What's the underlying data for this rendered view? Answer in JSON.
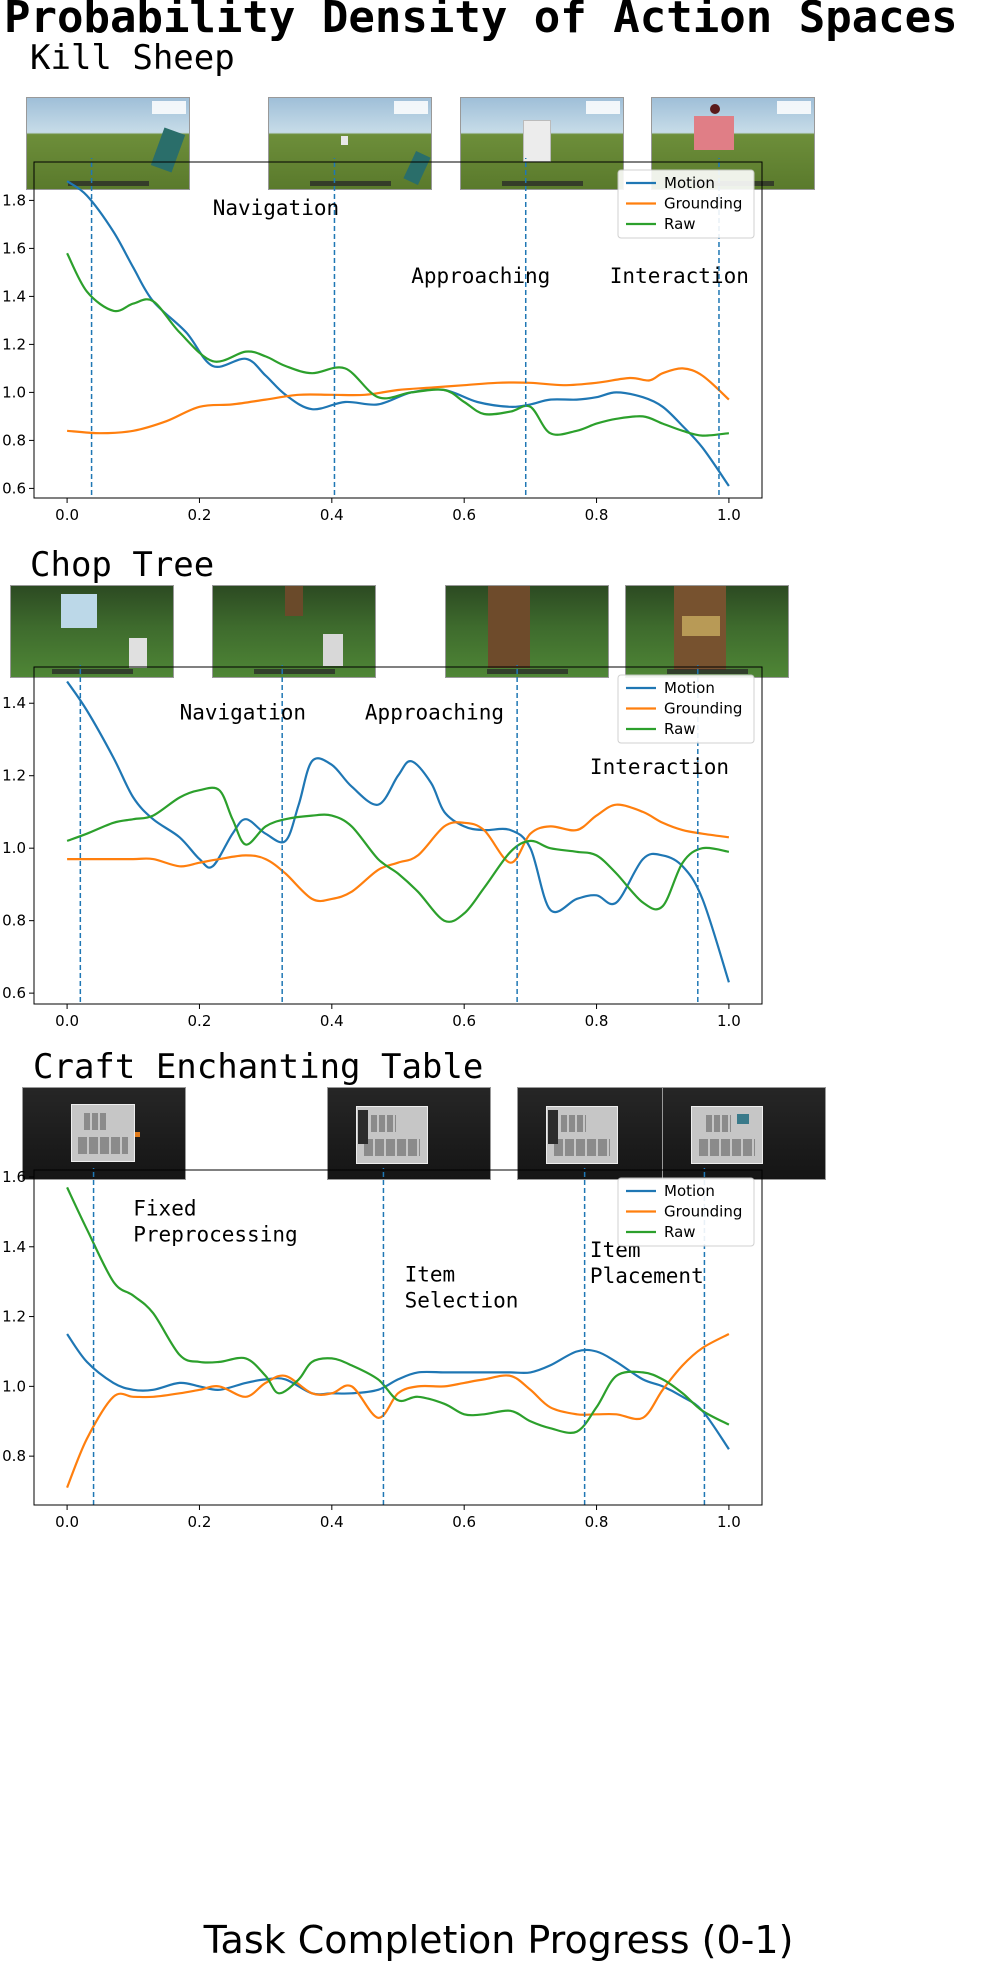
{
  "title": "Probability Density of Action Spaces",
  "x_axis_label": "Task Completion Progress (0-1)",
  "colors": {
    "Motion": "#1f77b4",
    "Grounding": "#ff7f0e",
    "Raw": "#2ca02c",
    "phase_line": "#1f77b4"
  },
  "panels": [
    {
      "name": "Kill Sheep",
      "thumb_scenes": [
        "grass-field",
        "grass-sheep-distant",
        "grass-sheep-near",
        "grass-sheep-hit"
      ]
    },
    {
      "name": "Chop Tree",
      "thumb_scenes": [
        "forest-leaves",
        "forest-trunk-distant",
        "forest-trunk-near",
        "forest-trunk-chopped"
      ]
    },
    {
      "name": "Craft Enchanting Table",
      "thumb_scenes": [
        "crafting-gui",
        "inventory-gui",
        "inventory-gui-select",
        "inventory-gui-place"
      ]
    }
  ],
  "chart_data": [
    {
      "type": "line",
      "title": "Kill Sheep",
      "xlabel": "Task Completion Progress (0-1)",
      "ylabel": "",
      "xlim": [
        -0.05,
        1.05
      ],
      "ylim": [
        0.56,
        1.96
      ],
      "xticks": [
        0.0,
        0.2,
        0.4,
        0.6,
        0.8,
        1.0
      ],
      "xtick_labels": [
        "0.0",
        "0.2",
        "0.4",
        "0.6",
        "0.8",
        "1.0"
      ],
      "yticks": [
        0.6,
        0.8,
        1.0,
        1.2,
        1.4,
        1.6,
        1.8
      ],
      "ytick_labels": [
        "0.6",
        "0.8",
        "1.0",
        "1.2",
        "1.4",
        "1.6",
        "1.8"
      ],
      "legend": [
        "Motion",
        "Grounding",
        "Raw"
      ],
      "legend_position": "top-right",
      "phase_lines": [
        0.037,
        0.404,
        0.693,
        0.985
      ],
      "phase_labels": [
        {
          "lines": [
            "Navigation"
          ],
          "x": 0.22,
          "y": 1.74
        },
        {
          "lines": [
            "Approaching"
          ],
          "x": 0.52,
          "y": 1.455
        },
        {
          "lines": [
            "Interaction"
          ],
          "x": 0.82,
          "y": 1.455
        }
      ],
      "series": [
        {
          "name": "Motion",
          "x": [
            0,
            0.03,
            0.07,
            0.1,
            0.13,
            0.18,
            0.22,
            0.27,
            0.3,
            0.33,
            0.37,
            0.42,
            0.47,
            0.52,
            0.57,
            0.62,
            0.67,
            0.7,
            0.73,
            0.77,
            0.8,
            0.83,
            0.87,
            0.9,
            0.93,
            0.96,
            1.0
          ],
          "y": [
            1.88,
            1.82,
            1.67,
            1.52,
            1.38,
            1.25,
            1.11,
            1.14,
            1.07,
            0.99,
            0.93,
            0.96,
            0.95,
            1.0,
            1.01,
            0.96,
            0.94,
            0.95,
            0.97,
            0.97,
            0.98,
            1.0,
            0.98,
            0.94,
            0.86,
            0.77,
            0.61
          ]
        },
        {
          "name": "Grounding",
          "x": [
            0,
            0.05,
            0.1,
            0.15,
            0.2,
            0.25,
            0.3,
            0.35,
            0.4,
            0.45,
            0.5,
            0.55,
            0.6,
            0.65,
            0.7,
            0.75,
            0.8,
            0.85,
            0.88,
            0.9,
            0.93,
            0.96,
            1.0
          ],
          "y": [
            0.84,
            0.83,
            0.84,
            0.88,
            0.94,
            0.95,
            0.97,
            0.99,
            0.99,
            0.99,
            1.01,
            1.02,
            1.03,
            1.04,
            1.04,
            1.03,
            1.04,
            1.06,
            1.05,
            1.08,
            1.1,
            1.07,
            0.97
          ]
        },
        {
          "name": "Raw",
          "x": [
            0,
            0.03,
            0.07,
            0.1,
            0.13,
            0.17,
            0.22,
            0.27,
            0.3,
            0.33,
            0.37,
            0.42,
            0.47,
            0.52,
            0.57,
            0.6,
            0.63,
            0.67,
            0.7,
            0.73,
            0.77,
            0.8,
            0.83,
            0.87,
            0.9,
            0.93,
            0.96,
            1.0
          ],
          "y": [
            1.58,
            1.42,
            1.34,
            1.37,
            1.38,
            1.25,
            1.13,
            1.17,
            1.15,
            1.11,
            1.08,
            1.1,
            0.98,
            1.0,
            1.01,
            0.96,
            0.91,
            0.92,
            0.94,
            0.83,
            0.84,
            0.87,
            0.89,
            0.9,
            0.87,
            0.84,
            0.82,
            0.83
          ]
        }
      ]
    },
    {
      "type": "line",
      "title": "Chop Tree",
      "xlabel": "Task Completion Progress (0-1)",
      "ylabel": "",
      "xlim": [
        -0.05,
        1.05
      ],
      "ylim": [
        0.57,
        1.5
      ],
      "xticks": [
        0.0,
        0.2,
        0.4,
        0.6,
        0.8,
        1.0
      ],
      "xtick_labels": [
        "0.0",
        "0.2",
        "0.4",
        "0.6",
        "0.8",
        "1.0"
      ],
      "yticks": [
        0.6,
        0.8,
        1.0,
        1.2,
        1.4
      ],
      "ytick_labels": [
        "0.6",
        "0.8",
        "1.0",
        "1.2",
        "1.4"
      ],
      "legend": [
        "Motion",
        "Grounding",
        "Raw"
      ],
      "legend_position": "top-right",
      "phase_lines": [
        0.02,
        0.325,
        0.68,
        0.953
      ],
      "phase_labels": [
        {
          "lines": [
            "Navigation"
          ],
          "x": 0.17,
          "y": 1.355
        },
        {
          "lines": [
            "Approaching"
          ],
          "x": 0.45,
          "y": 1.355
        },
        {
          "lines": [
            "Interaction"
          ],
          "x": 0.79,
          "y": 1.205
        }
      ],
      "series": [
        {
          "name": "Motion",
          "x": [
            0,
            0.03,
            0.07,
            0.1,
            0.13,
            0.17,
            0.2,
            0.22,
            0.25,
            0.27,
            0.3,
            0.33,
            0.35,
            0.37,
            0.4,
            0.43,
            0.47,
            0.5,
            0.52,
            0.55,
            0.57,
            0.6,
            0.63,
            0.67,
            0.7,
            0.73,
            0.77,
            0.8,
            0.83,
            0.87,
            0.9,
            0.93,
            0.96,
            1.0
          ],
          "y": [
            1.46,
            1.38,
            1.25,
            1.14,
            1.08,
            1.03,
            0.97,
            0.95,
            1.04,
            1.08,
            1.04,
            1.02,
            1.12,
            1.24,
            1.23,
            1.17,
            1.12,
            1.2,
            1.24,
            1.18,
            1.1,
            1.06,
            1.05,
            1.05,
            1.0,
            0.83,
            0.86,
            0.87,
            0.85,
            0.97,
            0.98,
            0.95,
            0.86,
            0.63
          ]
        },
        {
          "name": "Grounding",
          "x": [
            0,
            0.05,
            0.1,
            0.13,
            0.17,
            0.2,
            0.23,
            0.27,
            0.3,
            0.33,
            0.37,
            0.4,
            0.43,
            0.47,
            0.5,
            0.53,
            0.57,
            0.6,
            0.63,
            0.67,
            0.7,
            0.73,
            0.77,
            0.8,
            0.83,
            0.87,
            0.9,
            0.93,
            0.96,
            1.0
          ],
          "y": [
            0.97,
            0.97,
            0.97,
            0.97,
            0.95,
            0.96,
            0.97,
            0.98,
            0.97,
            0.93,
            0.86,
            0.86,
            0.88,
            0.94,
            0.96,
            0.98,
            1.06,
            1.07,
            1.05,
            0.96,
            1.04,
            1.06,
            1.05,
            1.09,
            1.12,
            1.1,
            1.07,
            1.05,
            1.04,
            1.03
          ]
        },
        {
          "name": "Raw",
          "x": [
            0,
            0.03,
            0.07,
            0.1,
            0.13,
            0.17,
            0.2,
            0.23,
            0.25,
            0.27,
            0.3,
            0.33,
            0.37,
            0.4,
            0.43,
            0.47,
            0.5,
            0.53,
            0.57,
            0.6,
            0.63,
            0.67,
            0.7,
            0.73,
            0.77,
            0.8,
            0.83,
            0.87,
            0.9,
            0.93,
            0.96,
            1.0
          ],
          "y": [
            1.02,
            1.04,
            1.07,
            1.08,
            1.09,
            1.14,
            1.16,
            1.16,
            1.08,
            1.01,
            1.06,
            1.08,
            1.09,
            1.09,
            1.06,
            0.97,
            0.93,
            0.88,
            0.8,
            0.82,
            0.89,
            0.99,
            1.02,
            1.0,
            0.99,
            0.98,
            0.93,
            0.85,
            0.84,
            0.96,
            1.0,
            0.99
          ]
        }
      ]
    },
    {
      "type": "line",
      "title": "Craft Enchanting Table",
      "xlabel": "Task Completion Progress (0-1)",
      "ylabel": "",
      "xlim": [
        -0.05,
        1.05
      ],
      "ylim": [
        0.66,
        1.62
      ],
      "xticks": [
        0.0,
        0.2,
        0.4,
        0.6,
        0.8,
        1.0
      ],
      "xtick_labels": [
        "0.0",
        "0.2",
        "0.4",
        "0.6",
        "0.8",
        "1.0"
      ],
      "yticks": [
        0.8,
        1.0,
        1.2,
        1.4,
        1.6
      ],
      "ytick_labels": [
        "0.8",
        "1.0",
        "1.2",
        "1.4",
        "1.6"
      ],
      "legend": [
        "Motion",
        "Grounding",
        "Raw"
      ],
      "legend_position": "top-right",
      "phase_lines": [
        0.04,
        0.478,
        0.782,
        0.963
      ],
      "phase_labels": [
        {
          "lines": [
            "Fixed",
            "Preprocessing"
          ],
          "x": 0.1,
          "y": 1.49
        },
        {
          "lines": [
            "Item",
            "Selection"
          ],
          "x": 0.51,
          "y": 1.3
        },
        {
          "lines": [
            "Item",
            "Placement"
          ],
          "x": 0.79,
          "y": 1.37
        }
      ],
      "series": [
        {
          "name": "Motion",
          "x": [
            0,
            0.03,
            0.07,
            0.1,
            0.13,
            0.17,
            0.2,
            0.23,
            0.27,
            0.3,
            0.33,
            0.37,
            0.4,
            0.43,
            0.47,
            0.5,
            0.53,
            0.57,
            0.6,
            0.63,
            0.67,
            0.7,
            0.73,
            0.77,
            0.8,
            0.83,
            0.87,
            0.9,
            0.93,
            0.96,
            1.0
          ],
          "y": [
            1.15,
            1.07,
            1.01,
            0.99,
            0.99,
            1.01,
            1.0,
            0.99,
            1.01,
            1.02,
            1.02,
            0.98,
            0.98,
            0.98,
            0.99,
            1.02,
            1.04,
            1.04,
            1.04,
            1.04,
            1.04,
            1.04,
            1.06,
            1.1,
            1.1,
            1.07,
            1.02,
            1.0,
            0.97,
            0.93,
            0.82
          ]
        },
        {
          "name": "Grounding",
          "x": [
            0,
            0.03,
            0.07,
            0.1,
            0.13,
            0.17,
            0.2,
            0.23,
            0.27,
            0.3,
            0.33,
            0.37,
            0.4,
            0.43,
            0.47,
            0.5,
            0.53,
            0.57,
            0.6,
            0.63,
            0.67,
            0.7,
            0.73,
            0.77,
            0.8,
            0.83,
            0.87,
            0.9,
            0.93,
            0.96,
            1.0
          ],
          "y": [
            0.71,
            0.85,
            0.97,
            0.97,
            0.97,
            0.98,
            0.99,
            1.0,
            0.97,
            1.01,
            1.03,
            0.98,
            0.98,
            1.0,
            0.91,
            0.98,
            1.0,
            1.0,
            1.01,
            1.02,
            1.03,
            0.99,
            0.94,
            0.92,
            0.92,
            0.92,
            0.91,
            0.99,
            1.06,
            1.11,
            1.15
          ]
        },
        {
          "name": "Raw",
          "x": [
            0,
            0.03,
            0.07,
            0.1,
            0.13,
            0.17,
            0.2,
            0.23,
            0.27,
            0.3,
            0.32,
            0.35,
            0.37,
            0.4,
            0.43,
            0.47,
            0.5,
            0.53,
            0.57,
            0.6,
            0.63,
            0.67,
            0.7,
            0.73,
            0.77,
            0.8,
            0.83,
            0.87,
            0.9,
            0.93,
            0.96,
            1.0
          ],
          "y": [
            1.57,
            1.45,
            1.3,
            1.26,
            1.21,
            1.09,
            1.07,
            1.07,
            1.08,
            1.03,
            0.98,
            1.02,
            1.07,
            1.08,
            1.06,
            1.02,
            0.96,
            0.97,
            0.95,
            0.92,
            0.92,
            0.93,
            0.9,
            0.88,
            0.87,
            0.94,
            1.03,
            1.04,
            1.02,
            0.98,
            0.93,
            0.89
          ]
        }
      ]
    }
  ]
}
